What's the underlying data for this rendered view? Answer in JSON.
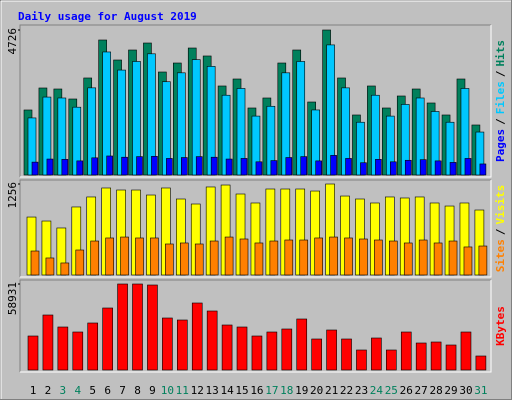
{
  "legend_separator": "/",
  "chart_data": [
    {
      "type": "bar",
      "title": "Daily usage for August 2019",
      "ylim": [
        0,
        4726
      ],
      "yticks": [
        4726
      ],
      "series": [
        {
          "name": "Pages",
          "color": "#0000ff",
          "values": [
            420,
            520,
            510,
            460,
            560,
            620,
            580,
            600,
            610,
            540,
            570,
            600,
            580,
            520,
            540,
            430,
            470,
            570,
            600,
            460,
            640,
            540,
            400,
            510,
            430,
            480,
            500,
            460,
            410,
            540,
            360
          ]
        },
        {
          "name": "Files",
          "color": "#00c8ff",
          "values": [
            1860,
            2540,
            2510,
            2210,
            2840,
            4010,
            3420,
            3700,
            3950,
            3040,
            3330,
            3760,
            3540,
            2600,
            2820,
            1920,
            2240,
            3330,
            3700,
            2120,
            4240,
            2840,
            1720,
            2600,
            1920,
            2300,
            2510,
            2070,
            1720,
            2820,
            1400
          ]
        },
        {
          "name": "Hits",
          "color": "#00805c",
          "values": [
            2119,
            2836,
            2803,
            2477,
            3162,
            4400,
            3748,
            4074,
            4302,
            3357,
            3650,
            4139,
            3879,
            2901,
            3129,
            2184,
            2510,
            3650,
            4074,
            2379,
            4726,
            3162,
            1956,
            2901,
            2184,
            2575,
            2803,
            2347,
            1956,
            3129,
            1630
          ]
        }
      ]
    },
    {
      "type": "bar",
      "ylim": [
        0,
        1256
      ],
      "yticks": [
        1256
      ],
      "series": [
        {
          "name": "Sites",
          "color": "#ff8000",
          "values": [
            331,
            235,
            166,
            345,
            469,
            511,
            524,
            511,
            511,
            428,
            442,
            428,
            469,
            524,
            497,
            442,
            469,
            483,
            483,
            511,
            524,
            511,
            497,
            483,
            469,
            442,
            483,
            442,
            469,
            387,
            400
          ]
        },
        {
          "name": "Visits",
          "color": "#ffff00",
          "values": [
            800,
            745,
            649,
            939,
            1077,
            1201,
            1173,
            1173,
            1104,
            1201,
            1049,
            980,
            1215,
            1242,
            1118,
            994,
            1187,
            1187,
            1187,
            1159,
            1256,
            1090,
            1049,
            994,
            1077,
            1063,
            1077,
            994,
            952,
            994,
            897
          ]
        }
      ]
    },
    {
      "type": "bar",
      "ylim": [
        0,
        58931
      ],
      "yticks": [
        58931
      ],
      "categories": [
        "1",
        "2",
        "3",
        "4",
        "5",
        "6",
        "7",
        "8",
        "9",
        "10",
        "11",
        "12",
        "13",
        "14",
        "15",
        "16",
        "17",
        "18",
        "19",
        "20",
        "21",
        "22",
        "23",
        "24",
        "25",
        "26",
        "27",
        "28",
        "29",
        "30",
        "31"
      ],
      "label_colors": [
        "#000000",
        "#000000",
        "#00805c",
        "#00805c",
        "#000000",
        "#000000",
        "#000000",
        "#000000",
        "#000000",
        "#00805c",
        "#00805c",
        "#000000",
        "#000000",
        "#000000",
        "#000000",
        "#000000",
        "#00805c",
        "#00805c",
        "#000000",
        "#000000",
        "#000000",
        "#000000",
        "#000000",
        "#00805c",
        "#00805c",
        "#000000",
        "#000000",
        "#000000",
        "#000000",
        "#000000",
        "#00805c"
      ],
      "series": [
        {
          "name": "KBytes",
          "color": "#ff0000",
          "values": [
            23298,
            37687,
            29465,
            26039,
            32206,
            42484,
            58931,
            58931,
            58245,
            35632,
            34262,
            45911,
            40429,
            30836,
            29465,
            23298,
            26039,
            28095,
            34947,
            21242,
            27410,
            21242,
            13705,
            21928,
            13705,
            26039,
            18501,
            19187,
            17131,
            26039,
            9593
          ]
        }
      ]
    }
  ]
}
